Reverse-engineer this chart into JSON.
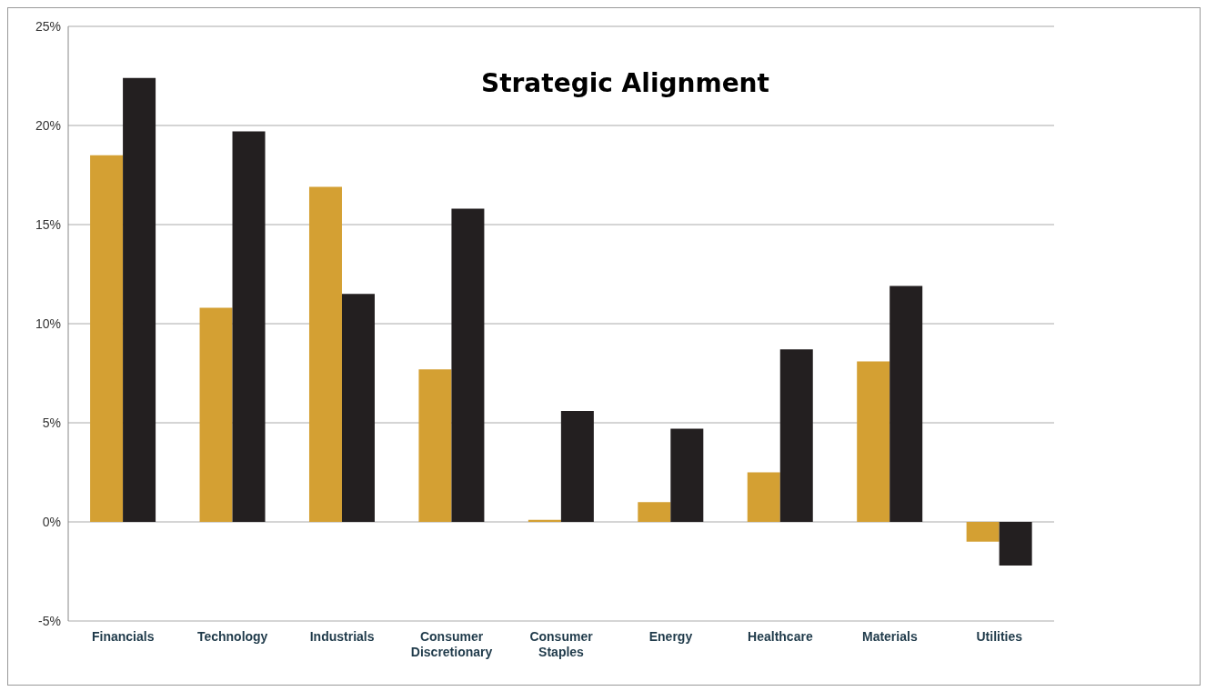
{
  "chart_data": {
    "type": "bar",
    "title": "Strategic Alignment",
    "categories": [
      "Financials",
      "Technology",
      "Industrials",
      "Consumer Discretionary",
      "Consumer Staples",
      "Energy",
      "Healthcare",
      "Materials",
      "Utilities"
    ],
    "series": [
      {
        "color": "#d4a033",
        "values": [
          18.5,
          10.8,
          16.9,
          7.7,
          0.1,
          1.0,
          2.5,
          8.1,
          -1.0
        ]
      },
      {
        "color": "#231f20",
        "values": [
          22.4,
          19.7,
          11.5,
          15.8,
          5.6,
          4.7,
          8.7,
          11.9,
          -2.2
        ]
      }
    ],
    "ylim": [
      -5,
      25
    ],
    "yticks": [
      {
        "value": -5,
        "label": "-5%"
      },
      {
        "value": 0,
        "label": "0%"
      },
      {
        "value": 5,
        "label": "5%"
      },
      {
        "value": 10,
        "label": "10%"
      },
      {
        "value": 15,
        "label": "15%"
      },
      {
        "value": 20,
        "label": "20%"
      },
      {
        "value": 25,
        "label": "25%"
      }
    ],
    "grid": "y"
  }
}
